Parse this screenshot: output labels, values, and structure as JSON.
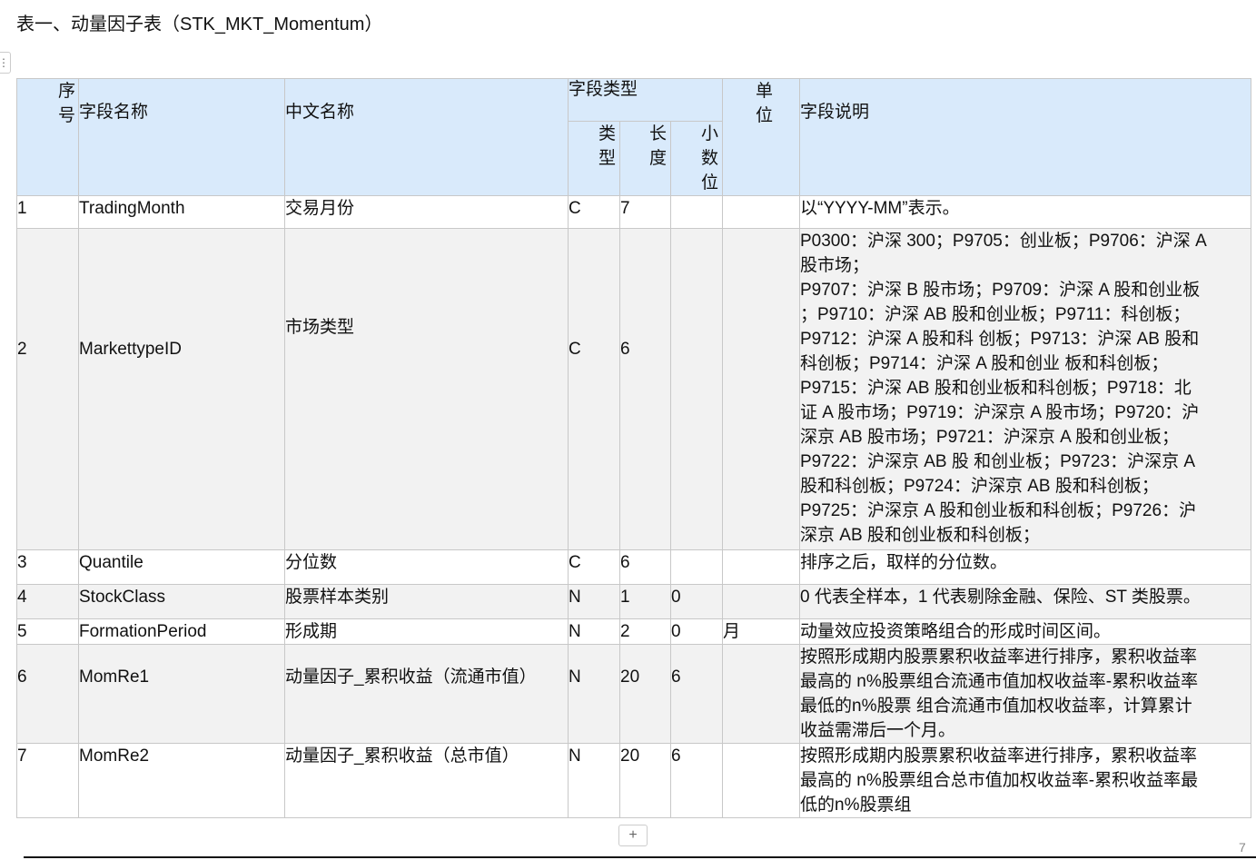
{
  "title": "表一、动量因子表（STK_MKT_Momentum）",
  "header": {
    "seq": "序号",
    "field": "字段名称",
    "cn": "中文名称",
    "type_group": "字段类型",
    "type": "类型",
    "length": "长度",
    "decimals": "小数位",
    "unit": "单位",
    "desc": "字段说明"
  },
  "rows": [
    {
      "seq": "1",
      "field": "TradingMonth",
      "cn": "交易月份",
      "type": "C",
      "length": "7",
      "decimals": "",
      "unit": "",
      "desc": [
        "以“YYYY-MM”表示。"
      ]
    },
    {
      "seq": "2",
      "field": "MarkettypeID",
      "cn": "市场类型",
      "type": "C",
      "length": "6",
      "decimals": "",
      "unit": "",
      "desc": [
        "P0300：沪深 300；P9705：创业板；P9706：沪深 A",
        "股市场；",
        "P9707：沪深 B 股市场；P9709：沪深 A 股和创业板",
        "；P9710：沪深 AB 股和创业板；P9711：科创板；",
        "P9712：沪深 A 股和科 创板；P9713：沪深 AB 股和",
        "科创板；P9714：沪深 A 股和创业 板和科创板；",
        "P9715：沪深 AB 股和创业板和科创板；P9718：北",
        "证 A 股市场；P9719：沪深京 A 股市场；P9720：沪",
        "深京 AB 股市场；P9721：沪深京 A 股和创业板；",
        "P9722：沪深京 AB 股 和创业板；P9723：沪深京 A",
        "股和科创板；P9724：沪深京 AB 股和科创板；",
        "P9725：沪深京 A 股和创业板和科创板；P9726：沪",
        "深京 AB 股和创业板和科创板；"
      ]
    },
    {
      "seq": "3",
      "field": "Quantile",
      "cn": "分位数",
      "type": "C",
      "length": "6",
      "decimals": "",
      "unit": "",
      "desc": [
        "排序之后，取样的分位数。"
      ]
    },
    {
      "seq": "4",
      "field": "StockClass",
      "cn": "股票样本类别",
      "type": "N",
      "length": "1",
      "decimals": "0",
      "unit": "",
      "desc": [
        "0 代表全样本，1 代表剔除金融、保险、ST 类股票。"
      ]
    },
    {
      "seq": "5",
      "field": "FormationPeriod",
      "cn": "形成期",
      "type": "N",
      "length": "2",
      "decimals": "0",
      "unit": "月",
      "desc": [
        "动量效应投资策略组合的形成时间区间。"
      ]
    },
    {
      "seq": "6",
      "field": "MomRe1",
      "cn": "动量因子_累积收益（流通市值）",
      "type": "N",
      "length": "20",
      "decimals": "6",
      "unit": "",
      "desc": [
        "按照形成期内股票累积收益率进行排序，累积收益率",
        "最高的 n%股票组合流通市值加权收益率-累积收益率",
        "最低的n%股票 组合流通市值加权收益率，计算累计",
        "收益需滞后一个月。"
      ]
    },
    {
      "seq": "7",
      "field": "MomRe2",
      "cn": "动量因子_累积收益（总市值）",
      "type": "N",
      "length": "20",
      "decimals": "6",
      "unit": "",
      "desc": [
        "按照形成期内股票累积收益率进行排序，累积收益率",
        "最高的 n%股票组合总市值加权收益率-累积收益率最",
        "低的n%股票组"
      ]
    }
  ],
  "add_row_label": "+",
  "page_number": "7"
}
